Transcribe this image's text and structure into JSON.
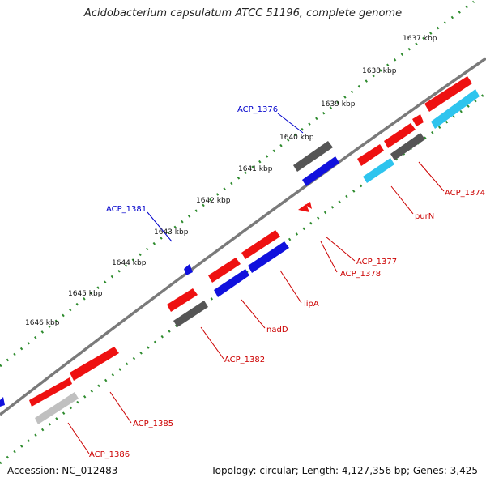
{
  "title": "Acidobacterium capsulatum ATCC 51196, complete genome",
  "accession": "Accession: NC_012483",
  "summary": "Topology: circular; Length: 4,127,356 bp; Genes: 3,425",
  "colors": {
    "backbone": "#7a7a7a",
    "tick_dots": "#2e8b2e",
    "forward_gene": "#ee1111",
    "reverse_gene": "#1111dd",
    "rna_gene": "#2ec4ee",
    "pseudo_gene": "#666666",
    "other_gene": "#c0c0c0",
    "label_forward": "#cc0000",
    "label_reverse": "#0000cc",
    "tick_text": "#111111"
  },
  "scale_ticks": [
    "1637 kbp",
    "1638 kbp",
    "1639 kbp",
    "1640 kbp",
    "1641 kbp",
    "1642 kbp",
    "1643 kbp",
    "1644 kbp",
    "1645 kbp",
    "1646 kbp"
  ],
  "gene_labels": [
    {
      "id": "acp1376",
      "text": "ACP_1376",
      "strand": "reverse"
    },
    {
      "id": "acp1381",
      "text": "ACP_1381",
      "strand": "reverse"
    },
    {
      "id": "acp1374",
      "text": "ACP_1374",
      "strand": "forward"
    },
    {
      "id": "purn",
      "text": "purN",
      "strand": "forward"
    },
    {
      "id": "acp1377",
      "text": "ACP_1377",
      "strand": "forward"
    },
    {
      "id": "acp1378",
      "text": "ACP_1378",
      "strand": "forward"
    },
    {
      "id": "lipa",
      "text": "lipA",
      "strand": "forward"
    },
    {
      "id": "nadd",
      "text": "nadD",
      "strand": "forward"
    },
    {
      "id": "acp1382",
      "text": "ACP_1382",
      "strand": "forward"
    },
    {
      "id": "acp1385",
      "text": "ACP_1385",
      "strand": "forward"
    },
    {
      "id": "acp1386",
      "text": "ACP_1386",
      "strand": "forward"
    }
  ]
}
